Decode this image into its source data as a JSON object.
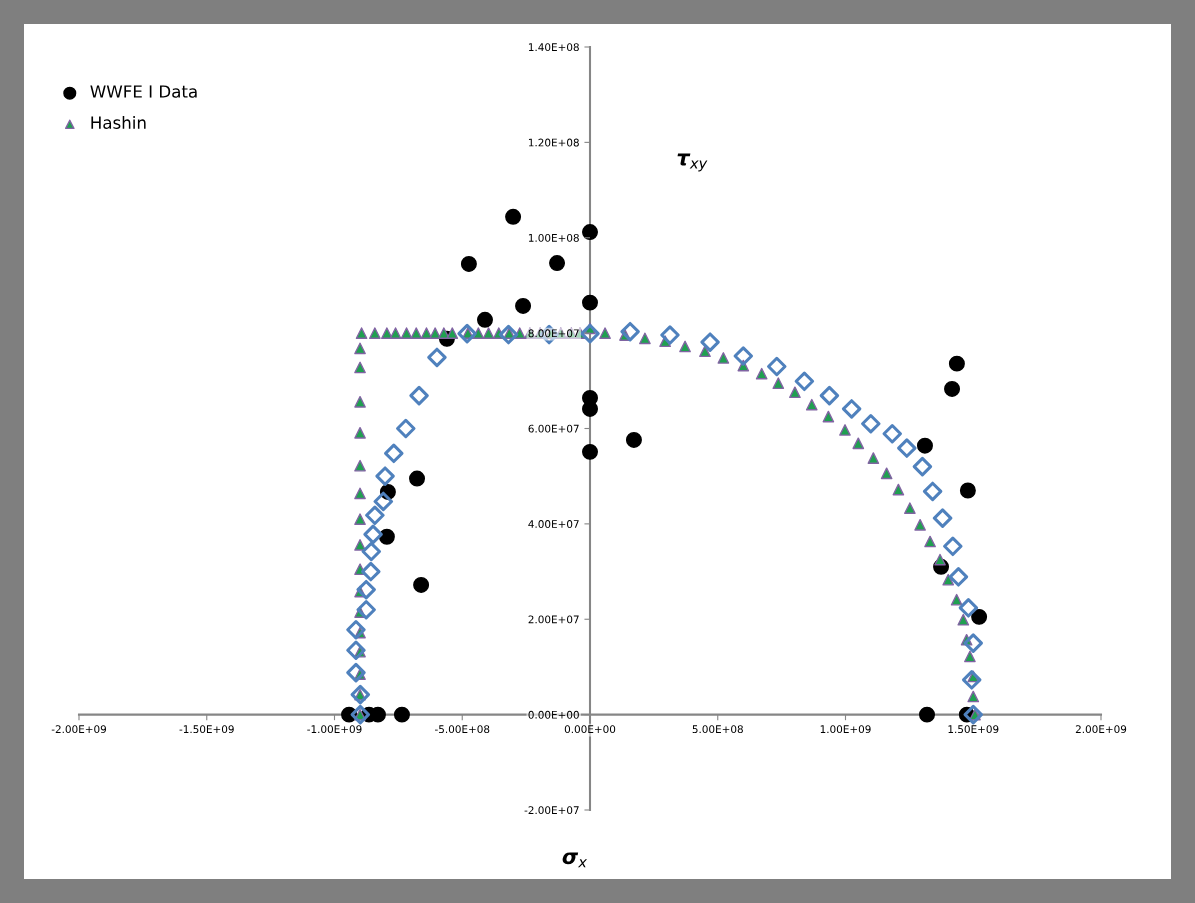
{
  "chart_data": {
    "type": "scatter",
    "xlabel": "σ$_{x}$",
    "ylabel": "τ$_{xy}$",
    "xlim": [
      -2000000000,
      2000000000
    ],
    "ylim": [
      -20000000,
      140000000
    ],
    "xticks": [
      {
        "value": -2000000000,
        "label": "-2.00E+09"
      },
      {
        "value": -1500000000,
        "label": "-1.50E+09"
      },
      {
        "value": -1000000000,
        "label": "-1.00E+09"
      },
      {
        "value": -500000000,
        "label": "-5.00E+08"
      },
      {
        "value": 0,
        "label": "0.00E+00"
      },
      {
        "value": 500000000,
        "label": "5.00E+08"
      },
      {
        "value": 1000000000,
        "label": "1.00E+09"
      },
      {
        "value": 1500000000,
        "label": "1.50E+09"
      },
      {
        "value": 2000000000,
        "label": "2.00E+09"
      }
    ],
    "yticks": [
      {
        "value": -20000000,
        "label": "-2.00E+07"
      },
      {
        "value": 0,
        "label": "0.00E+00"
      },
      {
        "value": 20000000,
        "label": "2.00E+07"
      },
      {
        "value": 40000000,
        "label": "4.00E+07"
      },
      {
        "value": 60000000,
        "label": "6.00E+07"
      },
      {
        "value": 80000000,
        "label": "8.00E+07"
      },
      {
        "value": 100000000,
        "label": "1.00E+08"
      },
      {
        "value": 120000000,
        "label": "1.20E+08"
      },
      {
        "value": 140000000,
        "label": "1.40E+08"
      }
    ],
    "grid": false,
    "legend": "top left",
    "series": [
      {
        "color": "#4f81bd",
        "marker": "diamond",
        "x": [
          -899000000,
          -899000000,
          -916000000,
          -916000000,
          -916000000,
          -876000000,
          -876000000,
          -858000000,
          -856000000,
          -849000000,
          -842000000,
          -809000000,
          -802000000,
          -768000000,
          -721000000,
          -669000000,
          -599000000,
          -481000000,
          -319000000,
          -160000000,
          0,
          157000000,
          313000000,
          470000000,
          600000000,
          731000000,
          839000000,
          937000000,
          1024000000,
          1099000000,
          1183000000,
          1240000000,
          1301000000,
          1341000000,
          1380000000,
          1420000000,
          1442000000,
          1481000000,
          1500000000,
          1494000000,
          1500000000
        ],
        "values": [
          0,
          4200000,
          8800000,
          13500000,
          17800000,
          22000000,
          26200000,
          30000000,
          34200000,
          37800000,
          41800000,
          44700000,
          50000000,
          54800000,
          60000000,
          66900000,
          74900000,
          79900000,
          79700000,
          79700000,
          79900000,
          80300000,
          79600000,
          78100000,
          75200000,
          73000000,
          69900000,
          66900000,
          64100000,
          61000000,
          58900000,
          55900000,
          52000000,
          46800000,
          41200000,
          35300000,
          28900000,
          22400000,
          15000000,
          7300000,
          0
        ]
      },
      {
        "name": "WWFE I Data",
        "color": "#000000",
        "marker": "circle",
        "x": [
          -943000000,
          -865000000,
          -830000000,
          -736000000,
          -795000000,
          -791000000,
          -661000000,
          -677000000,
          -560000000,
          -474000000,
          -411000000,
          -301000000,
          -262000000,
          -129000000,
          0,
          0,
          0,
          0,
          0,
          172000000,
          1436000000,
          1417000000,
          1311000000,
          1479000000,
          1374000000,
          1523000000,
          1319000000,
          1475000000
        ],
        "values": [
          0,
          0,
          0,
          0,
          37300000,
          46700000,
          27200000,
          49500000,
          78800000,
          94500000,
          82800000,
          104400000,
          85700000,
          94700000,
          101200000,
          86400000,
          66400000,
          64100000,
          55100000,
          57600000,
          73600000,
          68300000,
          56400000,
          47000000,
          31000000,
          20500000,
          0,
          0
        ]
      },
      {
        "name": "Hashin",
        "color": "#1fa050",
        "marker": "triangle",
        "x": [
          -900000000,
          -900000000,
          -900000000,
          -900000000,
          -900000000,
          -900000000,
          -900000000,
          -900000000,
          -900000000,
          -900000000,
          -900000000,
          -900000000,
          -900000000,
          -900000000,
          -900000000,
          -900000000,
          -894000000,
          -842000000,
          -795000000,
          -761000000,
          -718000000,
          -680000000,
          -640000000,
          -606000000,
          -572000000,
          -539000000,
          -478000000,
          -437000000,
          -397000000,
          -357000000,
          -316000000,
          -275000000,
          -235000000,
          -195000000,
          -154000000,
          -114000000,
          -73000000,
          -39000000,
          0,
          59000000,
          137000000,
          215000000,
          294000000,
          372000000,
          450000000,
          522000000,
          600000000,
          672000000,
          737000000,
          802000000,
          868000000,
          933000000,
          998000000,
          1050000000,
          1109000000,
          1161000000,
          1207000000,
          1252000000,
          1292000000,
          1331000000,
          1370000000,
          1402000000,
          1435000000,
          1461000000,
          1474000000,
          1487000000,
          1500000000,
          1500000000,
          1507000000
        ],
        "values": [
          0,
          4200000,
          8500000,
          13200000,
          17200000,
          21500000,
          25800000,
          30500000,
          35600000,
          41000000,
          46400000,
          52200000,
          59100000,
          65600000,
          72800000,
          76800000,
          80000000,
          80000000,
          80000000,
          80000000,
          80000000,
          80000000,
          80000000,
          80000000,
          80000000,
          80000000,
          80000000,
          80000000,
          80000000,
          80000000,
          80000000,
          80000000,
          80000000,
          80000000,
          80000000,
          80000000,
          80000000,
          80000000,
          81000000,
          80000000,
          79600000,
          78900000,
          78300000,
          77200000,
          76200000,
          74800000,
          73200000,
          71500000,
          69500000,
          67600000,
          65000000,
          62500000,
          59700000,
          56900000,
          53800000,
          50600000,
          47200000,
          43300000,
          39800000,
          36300000,
          32500000,
          28300000,
          24100000,
          19900000,
          15700000,
          12200000,
          8000000,
          3800000,
          0
        ]
      }
    ]
  }
}
